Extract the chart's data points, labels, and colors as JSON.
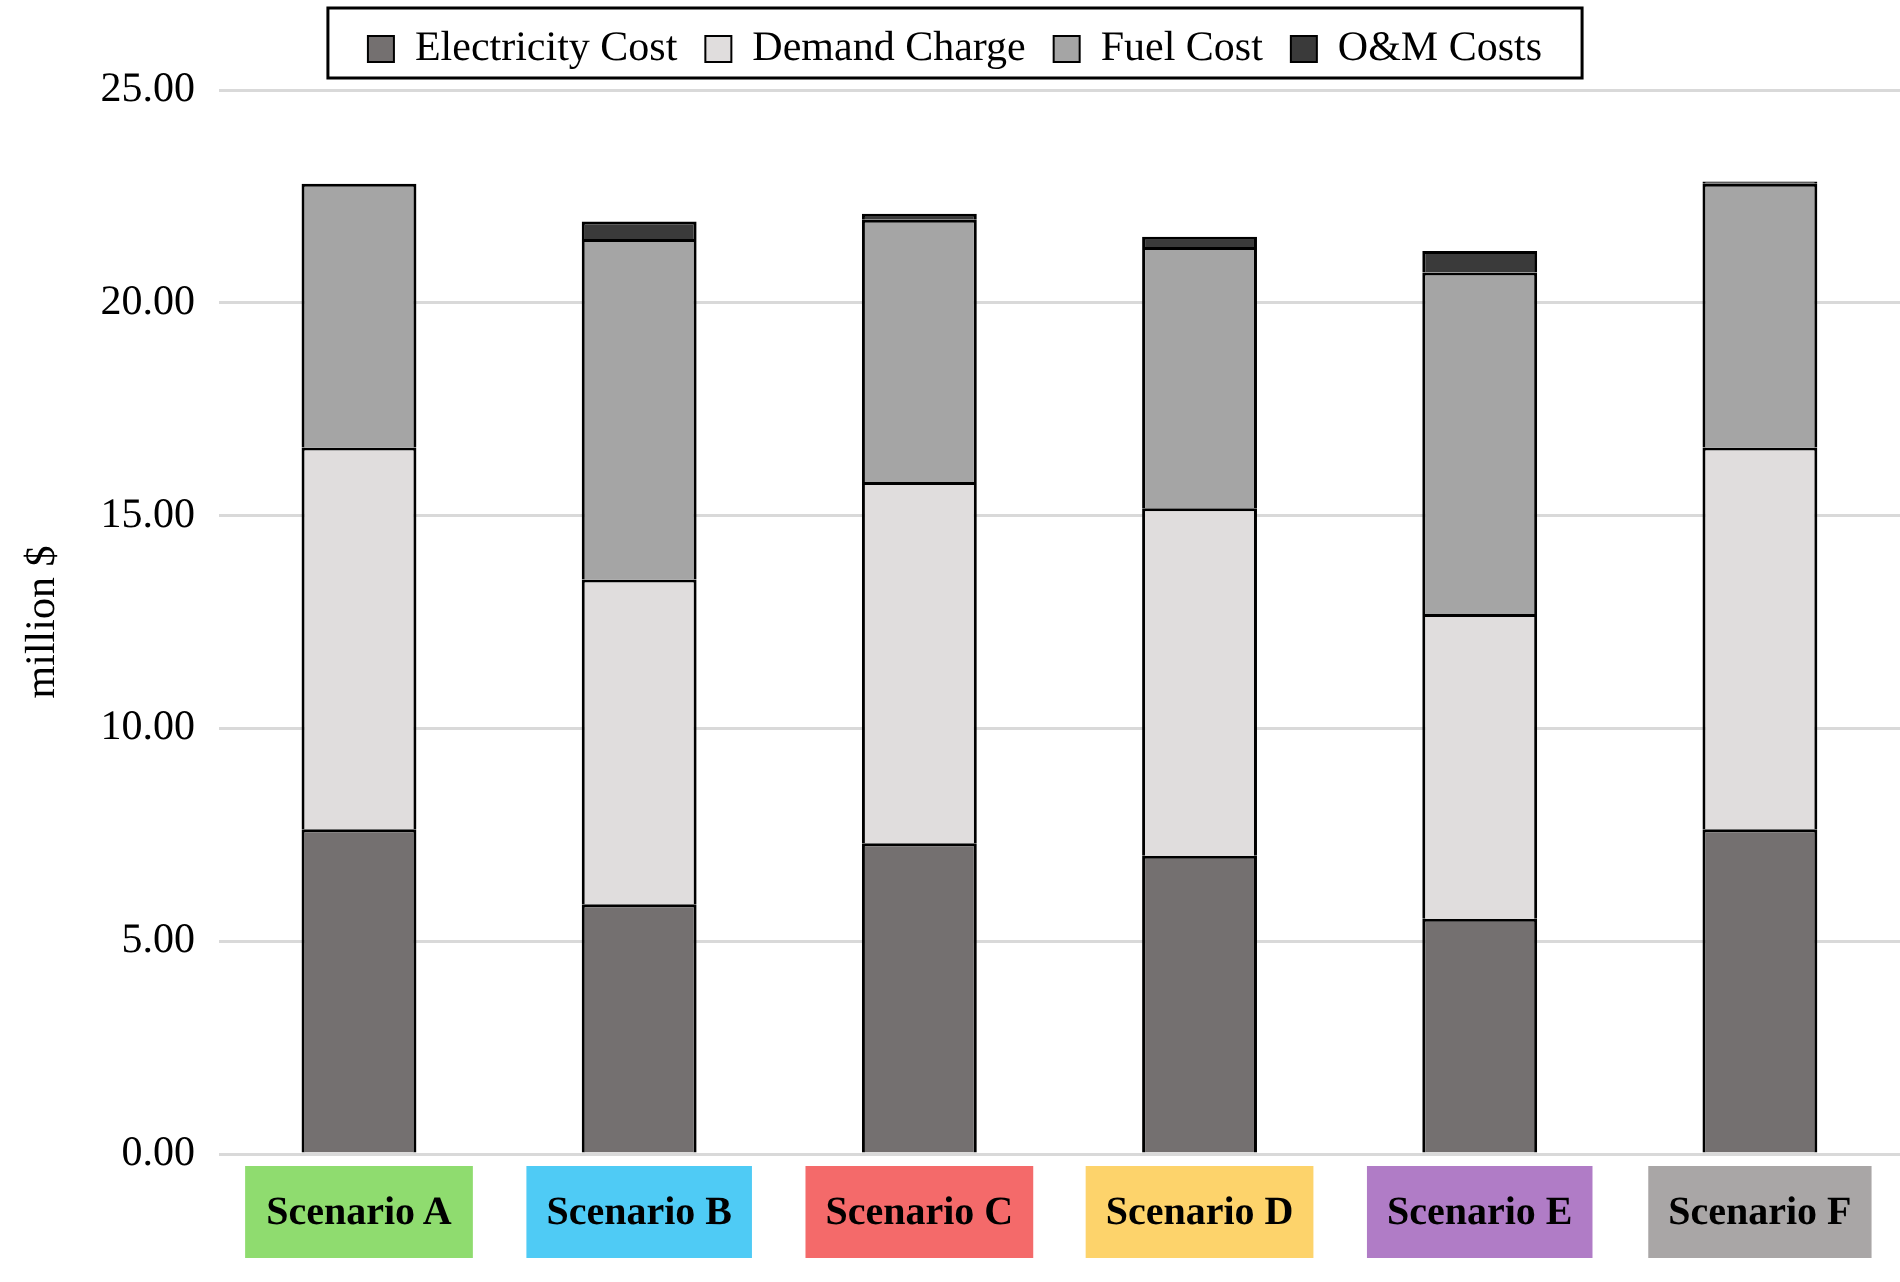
{
  "chart_data": {
    "type": "bar",
    "stacked": true,
    "ylabel": "million $",
    "categories": [
      "Scenario A",
      "Scenario B",
      "Scenario C",
      "Scenario D",
      "Scenario E",
      "Scenario F"
    ],
    "series": [
      {
        "name": "Electricity Cost",
        "color": "#747070",
        "values": [
          7.63,
          5.87,
          7.3,
          7.01,
          5.53,
          7.63
        ]
      },
      {
        "name": "Demand Charge",
        "color": "#e0dddd",
        "values": [
          8.97,
          7.63,
          8.49,
          8.16,
          7.16,
          8.97
        ]
      },
      {
        "name": "Fuel Cost",
        "color": "#a5a5a5",
        "values": [
          6.2,
          8.0,
          6.16,
          6.14,
          8.02,
          6.2
        ]
      },
      {
        "name": "O&M Costs",
        "color": "#3a3a3a",
        "values": [
          0,
          0.41,
          0.14,
          0.24,
          0.51,
          0.05
        ]
      }
    ],
    "ylim": [
      0,
      25
    ],
    "yticks": [
      {
        "value": 0,
        "label": "0.00"
      },
      {
        "value": 5,
        "label": "5.00"
      },
      {
        "value": 10,
        "label": "10.00"
      },
      {
        "value": 15,
        "label": "15.00"
      },
      {
        "value": 20,
        "label": "20.00"
      },
      {
        "value": 25,
        "label": "25.00"
      }
    ],
    "grid": "y",
    "legend": "top"
  }
}
